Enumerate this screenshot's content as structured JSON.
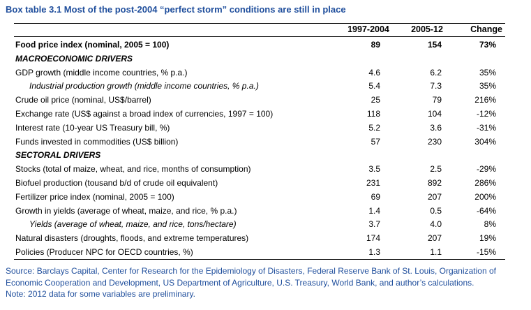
{
  "title": "Box table 3.1  Most of the post-2004 “perfect storm” conditions are still in place",
  "header": [
    "1997-2004",
    "2005-12",
    "Change"
  ],
  "table": {
    "rows": [
      [
        "Food price index (nominal, 2005 = 100)",
        "89",
        "154",
        "73%"
      ],
      [
        "MACROECONOMIC DRIVERS"
      ],
      [
        "GDP growth (middle income countries, % p.a.)",
        "4.6",
        "6.2",
        "35%"
      ],
      [
        "Industrial production growth (middle income countries, % p.a.)",
        "5.4",
        "7.3",
        "35%"
      ],
      [
        "Crude oil price (nominal, US$/barrel)",
        "25",
        "79",
        "216%"
      ],
      [
        "Exchange rate (US$ against a broad index of currencies, 1997 = 100)",
        "118",
        "104",
        "-12%"
      ],
      [
        "Interest rate (10-year US Treasury bill, %)",
        "5.2",
        "3.6",
        "-31%"
      ],
      [
        "Funds invested in commodities (US$ billion)",
        "57",
        "230",
        "304%"
      ],
      [
        "SECTORAL DRIVERS"
      ],
      [
        "Stocks (total of maize, wheat, and rice, months of consumption)",
        "3.5",
        "2.5",
        "-29%"
      ],
      [
        "Biofuel production (tousand b/d of crude oil equivalent)",
        "231",
        "892",
        "286%"
      ],
      [
        "Fertilizer price index (nominal, 2005 = 100)",
        "69",
        "207",
        "200%"
      ],
      [
        "Growth in yields (average of wheat, maize, and rice, % p.a.)",
        "1.4",
        "0.5",
        "-64%"
      ],
      [
        "Yields (average of wheat, maize, and rice, tons/hectare)",
        "3.7",
        "4.0",
        "8%"
      ],
      [
        "Natural disasters (droughts, floods, and extreme temperatures)",
        "174",
        "207",
        "19%"
      ],
      [
        "Policies (Producer NPC for OECD countries, %)",
        "1.3",
        "1.1",
        "-15%"
      ]
    ]
  },
  "footer": {
    "source": "Source:  Barclays Capital, Center for Research for the Epidemiology of Disasters, Federal Reserve Bank of St. Louis, Organization of Economic Cooperation and Development, US Department of Agriculture, U.S. Treasury, World Bank, and author’s calculations.",
    "note": "Note:  2012 data for some variables are preliminary."
  }
}
